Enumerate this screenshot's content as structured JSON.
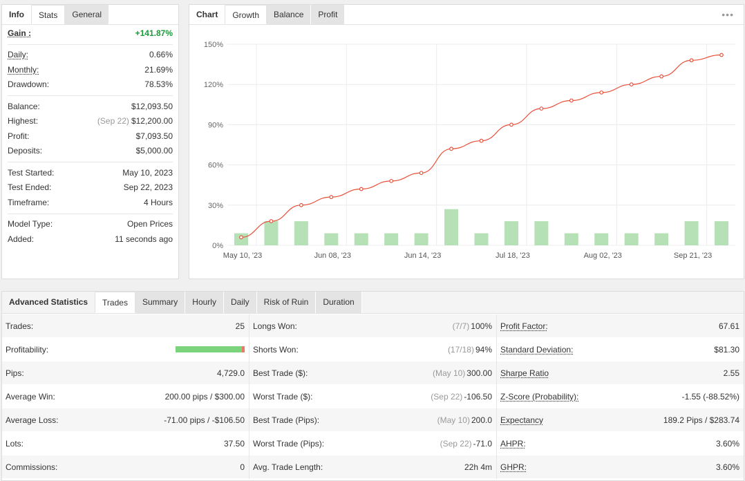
{
  "info_panel": {
    "tabs": [
      "Info",
      "Stats",
      "General"
    ],
    "gain": {
      "label": "Gain :",
      "value": "+141.87%"
    },
    "group1": [
      {
        "label": "Daily:",
        "value": "0.66%"
      },
      {
        "label": "Monthly:",
        "value": "21.69%"
      },
      {
        "label": "Drawdown:",
        "value": "78.53%"
      }
    ],
    "group2": [
      {
        "label": "Balance:",
        "value": "$12,093.50"
      },
      {
        "label": "Highest:",
        "note": "(Sep 22)",
        "value": "$12,200.00"
      },
      {
        "label": "Profit:",
        "value": "$7,093.50"
      },
      {
        "label": "Deposits:",
        "value": "$5,000.00"
      }
    ],
    "group3": [
      {
        "label": "Test Started:",
        "value": "May 10, 2023"
      },
      {
        "label": "Test Ended:",
        "value": "Sep 22, 2023"
      },
      {
        "label": "Timeframe:",
        "value": "4 Hours"
      }
    ],
    "group4": [
      {
        "label": "Model Type:",
        "value": "Open Prices"
      },
      {
        "label": "Added:",
        "value": "11 seconds ago"
      }
    ]
  },
  "chart_panel": {
    "tabs": [
      "Chart",
      "Growth",
      "Balance",
      "Profit"
    ],
    "more_icon": "•••"
  },
  "chart_data": {
    "type": "line",
    "x": [
      "May 10, '23",
      "",
      "",
      "Jun 08, '23",
      "",
      "",
      "Jun 14, '23",
      "",
      "",
      "Jul 18, '23",
      "",
      "",
      "Aug 02, '23",
      "",
      "",
      "Sep 21, '23",
      ""
    ],
    "xticks": [
      "May 10, '23",
      "Jun 08, '23",
      "Jun 14, '23",
      "Jul 18, '23",
      "Aug 02, '23",
      "Sep 21, '23"
    ],
    "yticks": [
      "150%",
      "120%",
      "90%",
      "60%",
      "30%",
      "0%"
    ],
    "ylim": [
      0,
      150
    ],
    "series": [
      {
        "type": "line",
        "color": "#e8503a",
        "values": [
          6,
          18,
          30,
          36,
          42,
          48,
          54,
          72,
          78,
          90,
          102,
          108,
          114,
          120,
          126,
          138,
          142
        ]
      },
      {
        "type": "bar",
        "color": "#b6e1b6",
        "values": [
          9,
          18,
          18,
          9,
          9,
          9,
          9,
          27,
          9,
          18,
          18,
          9,
          9,
          9,
          9,
          18,
          18
        ]
      }
    ]
  },
  "adv": {
    "tabs": [
      "Advanced Statistics",
      "Trades",
      "Summary",
      "Hourly",
      "Daily",
      "Risk of Ruin",
      "Duration"
    ],
    "col1": [
      {
        "label": "Trades:",
        "value": "25"
      },
      {
        "label": "Profitability:",
        "bar_win": 0.96
      },
      {
        "label": "Pips:",
        "value": "4,729.0"
      },
      {
        "label": "Average Win:",
        "value": "200.00 pips / $300.00"
      },
      {
        "label": "Average Loss:",
        "value": "-71.00 pips / -$106.50"
      },
      {
        "label": "Lots:",
        "value": "37.50"
      },
      {
        "label": "Commissions:",
        "value": "0"
      }
    ],
    "col2": [
      {
        "label": "Longs Won:",
        "note": "(7/7)",
        "value": "100%"
      },
      {
        "label": "Shorts Won:",
        "note": "(17/18)",
        "value": "94%"
      },
      {
        "label": "Best Trade ($):",
        "note": "(May 10)",
        "value": "300.00"
      },
      {
        "label": "Worst Trade ($):",
        "note": "(Sep 22)",
        "value": "-106.50"
      },
      {
        "label": "Best Trade (Pips):",
        "note": "(May 10)",
        "value": "200.0"
      },
      {
        "label": "Worst Trade (Pips):",
        "note": "(Sep 22)",
        "value": "-71.0"
      },
      {
        "label": "Avg. Trade Length:",
        "value": "22h 4m"
      }
    ],
    "col3": [
      {
        "label": "Profit Factor:",
        "value": "67.61"
      },
      {
        "label": "Standard Deviation:",
        "value": "$81.30"
      },
      {
        "label": "Sharpe Ratio",
        "value": "2.55"
      },
      {
        "label": "Z-Score (Probability):",
        "value": "-1.55 (-88.52%)"
      },
      {
        "label": "Expectancy",
        "value": "189.2 Pips / $283.74"
      },
      {
        "label": "AHPR:",
        "value": "3.60%"
      },
      {
        "label": "GHPR:",
        "value": "3.60%"
      }
    ]
  }
}
